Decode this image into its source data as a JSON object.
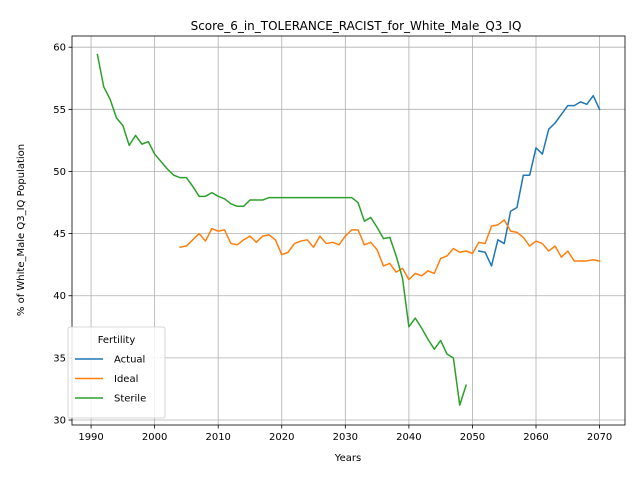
{
  "chart_data": {
    "type": "line",
    "title": "Score_6_in_TOLERANCE_RACIST_for_White_Male_Q3_IQ",
    "xlabel": "Years",
    "ylabel": "% of White_Male Q3_IQ Population",
    "xlim": [
      1987,
      2074
    ],
    "ylim": [
      29.6,
      60.9
    ],
    "xticks": [
      1990,
      2000,
      2010,
      2020,
      2030,
      2040,
      2050,
      2060,
      2070
    ],
    "yticks": [
      30,
      35,
      40,
      45,
      50,
      55,
      60
    ],
    "grid": true,
    "legend": {
      "title": "Fertility",
      "placement": "lower-left"
    },
    "series": [
      {
        "name": "Actual",
        "color": "#1f77b4",
        "x": [
          2051,
          2052,
          2053,
          2054,
          2055,
          2056,
          2057,
          2058,
          2059,
          2060,
          2061,
          2062,
          2063,
          2064,
          2065,
          2066,
          2067,
          2068,
          2069,
          2070
        ],
        "y": [
          43.6,
          43.5,
          42.4,
          44.5,
          44.2,
          46.8,
          47.1,
          49.7,
          49.7,
          51.9,
          51.4,
          53.4,
          53.9,
          54.6,
          55.3,
          55.3,
          55.6,
          55.4,
          56.1,
          55.0
        ]
      },
      {
        "name": "Ideal",
        "color": "#ff7f0e",
        "x": [
          2004,
          2005,
          2006,
          2007,
          2008,
          2009,
          2010,
          2011,
          2012,
          2013,
          2014,
          2015,
          2016,
          2017,
          2018,
          2019,
          2020,
          2021,
          2022,
          2023,
          2024,
          2025,
          2026,
          2027,
          2028,
          2029,
          2030,
          2031,
          2032,
          2033,
          2034,
          2035,
          2036,
          2037,
          2038,
          2039,
          2040,
          2041,
          2042,
          2043,
          2044,
          2045,
          2046,
          2047,
          2048,
          2049,
          2050,
          2051,
          2052,
          2053,
          2054,
          2055,
          2056,
          2057,
          2058,
          2059,
          2060,
          2061,
          2062,
          2063,
          2064,
          2065,
          2066,
          2067,
          2068,
          2069,
          2070
        ],
        "y": [
          43.9,
          44.0,
          44.5,
          45.0,
          44.4,
          45.4,
          45.2,
          45.3,
          44.2,
          44.1,
          44.5,
          44.8,
          44.3,
          44.8,
          44.9,
          44.5,
          43.3,
          43.5,
          44.2,
          44.4,
          44.5,
          43.9,
          44.8,
          44.2,
          44.3,
          44.1,
          44.8,
          45.3,
          45.3,
          44.1,
          44.3,
          43.7,
          42.4,
          42.6,
          41.9,
          42.2,
          41.3,
          41.8,
          41.6,
          42.0,
          41.8,
          43.0,
          43.2,
          43.8,
          43.5,
          43.6,
          43.4,
          44.3,
          44.2,
          45.6,
          45.7,
          46.1,
          45.2,
          45.1,
          44.7,
          44.0,
          44.4,
          44.2,
          43.6,
          44.0,
          43.1,
          43.6,
          42.8,
          42.8,
          42.8,
          42.9,
          42.8
        ]
      },
      {
        "name": "Sterile",
        "color": "#2ca02c",
        "x": [
          1991,
          1992,
          1993,
          1994,
          1995,
          1996,
          1997,
          1998,
          1999,
          2000,
          2001,
          2002,
          2003,
          2004,
          2005,
          2006,
          2007,
          2008,
          2009,
          2010,
          2011,
          2012,
          2013,
          2014,
          2015,
          2016,
          2017,
          2018,
          2019,
          2020,
          2021,
          2022,
          2023,
          2024,
          2025,
          2026,
          2027,
          2028,
          2029,
          2030,
          2031,
          2032,
          2033,
          2034,
          2035,
          2036,
          2037,
          2038,
          2039,
          2040,
          2041,
          2042,
          2043,
          2044,
          2045,
          2046,
          2047,
          2048,
          2049
        ],
        "y": [
          59.4,
          56.8,
          55.8,
          54.3,
          53.7,
          52.1,
          52.9,
          52.2,
          52.4,
          51.4,
          50.8,
          50.2,
          49.7,
          49.5,
          49.5,
          48.8,
          48.0,
          48.0,
          48.3,
          48.0,
          47.8,
          47.4,
          47.2,
          47.2,
          47.7,
          47.7,
          47.7,
          47.9,
          47.9,
          47.9,
          47.9,
          47.9,
          47.9,
          47.9,
          47.9,
          47.9,
          47.9,
          47.9,
          47.9,
          47.9,
          47.9,
          47.5,
          46.0,
          46.3,
          45.5,
          44.6,
          44.7,
          43.2,
          41.4,
          37.5,
          38.2,
          37.4,
          36.5,
          35.7,
          36.4,
          35.3,
          35.0,
          31.2,
          32.8
        ]
      }
    ]
  }
}
